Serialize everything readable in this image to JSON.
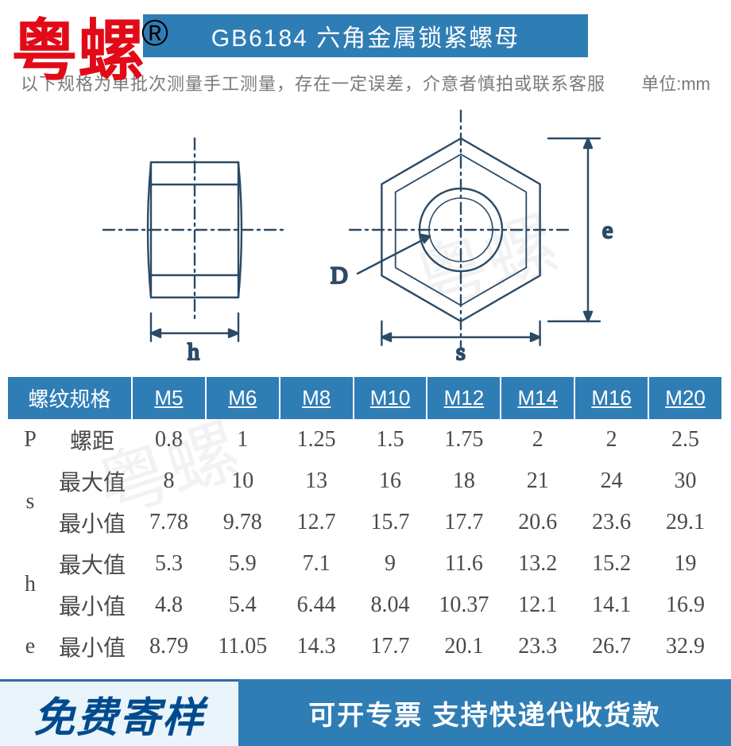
{
  "brand": {
    "text": "粤螺",
    "symbol": "®",
    "color": "#e20a17"
  },
  "title_bar": {
    "text": "GB6184 六角金属锁紧螺母",
    "bg": "#2f7db5",
    "fg": "#ffffff"
  },
  "subline": {
    "left": "以下规格为单批次测量手工测量，存在一定误差，介意者慎拍或联系客服",
    "right": "单位:mm",
    "color": "#7a7a7a"
  },
  "diagram": {
    "stroke": "#2b4a66",
    "labels": {
      "h": "h",
      "D": "D",
      "s": "s",
      "e": "e"
    },
    "label_fontsize": 30
  },
  "table": {
    "header_bg": "#2f7db5",
    "header_fg": "#ffffff",
    "text_color": "#4a4a4a",
    "columns_header": "螺纹规格",
    "columns": [
      "M5",
      "M6",
      "M8",
      "M10",
      "M12",
      "M14",
      "M16",
      "M20"
    ],
    "groups": [
      {
        "symbol": "P",
        "rows": [
          {
            "label": "螺距",
            "values": [
              "0.8",
              "1",
              "1.25",
              "1.5",
              "1.75",
              "2",
              "2",
              "2.5"
            ]
          }
        ]
      },
      {
        "symbol": "s",
        "rows": [
          {
            "label": "最大值",
            "values": [
              "8",
              "10",
              "13",
              "16",
              "18",
              "21",
              "24",
              "30"
            ]
          },
          {
            "label": "最小值",
            "values": [
              "7.78",
              "9.78",
              "12.7",
              "15.7",
              "17.7",
              "20.6",
              "23.6",
              "29.1"
            ]
          }
        ]
      },
      {
        "symbol": "h",
        "rows": [
          {
            "label": "最大值",
            "values": [
              "5.3",
              "5.9",
              "7.1",
              "9",
              "11.6",
              "13.2",
              "15.2",
              "19"
            ]
          },
          {
            "label": "最小值",
            "values": [
              "4.8",
              "5.4",
              "6.44",
              "8.04",
              "10.37",
              "12.1",
              "14.1",
              "16.9"
            ]
          }
        ]
      },
      {
        "symbol": "e",
        "rows": [
          {
            "label": "最小值",
            "values": [
              "8.79",
              "11.05",
              "14.3",
              "17.7",
              "20.1",
              "23.3",
              "26.7",
              "32.9"
            ]
          }
        ]
      }
    ]
  },
  "footer": {
    "left": {
      "text": "免费寄样",
      "bg": "#e9f4fb",
      "fg": "#004b8d",
      "border": "#2d6ea8"
    },
    "right": {
      "text": "可开专票 支持快递代收货款",
      "bg": "#2f7db5",
      "fg": "#ffffff"
    }
  },
  "watermark": {
    "text": "粤螺",
    "color": "rgba(150,150,150,0.12)"
  }
}
